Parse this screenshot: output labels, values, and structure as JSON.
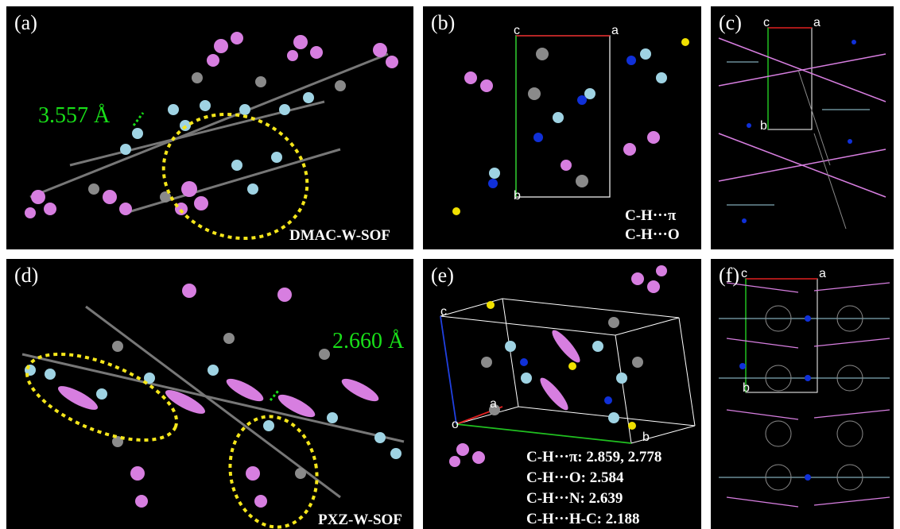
{
  "panels": {
    "a": {
      "label": "(a)",
      "name": "DMAC-W-SOF",
      "distance": "3.557 Å"
    },
    "b": {
      "label": "(b)",
      "axis_c": "c",
      "axis_a": "a",
      "axis_b": "b",
      "interactions": [
        "C-H···π",
        "C-H···O"
      ]
    },
    "c": {
      "label": "(c)",
      "axis_c": "c",
      "axis_a": "a",
      "axis_b": "b"
    },
    "d": {
      "label": "(d)",
      "name": "PXZ-W-SOF",
      "distance": "2.660 Å"
    },
    "e": {
      "label": "(e)",
      "axis_c": "c",
      "axis_a": "a",
      "axis_b": "b",
      "axis_o": "o",
      "interactions": [
        "C-H···π:  2.859, 2.778",
        "C-H···O: 2.584",
        "C-H···N: 2.639",
        "C-H···H-C: 2.188"
      ]
    },
    "f": {
      "label": "(f)",
      "axis_c": "c",
      "axis_a": "a",
      "axis_b": "b"
    }
  },
  "colors": {
    "pink": "#d77ee0",
    "lightblue": "#9fd3e3",
    "gray": "#8a8a8a",
    "white": "#ffffff",
    "blue": "#1030d8",
    "yellow": "#f0e000",
    "green": "#19e019",
    "dashed_ellipse": "#f5e61a"
  }
}
